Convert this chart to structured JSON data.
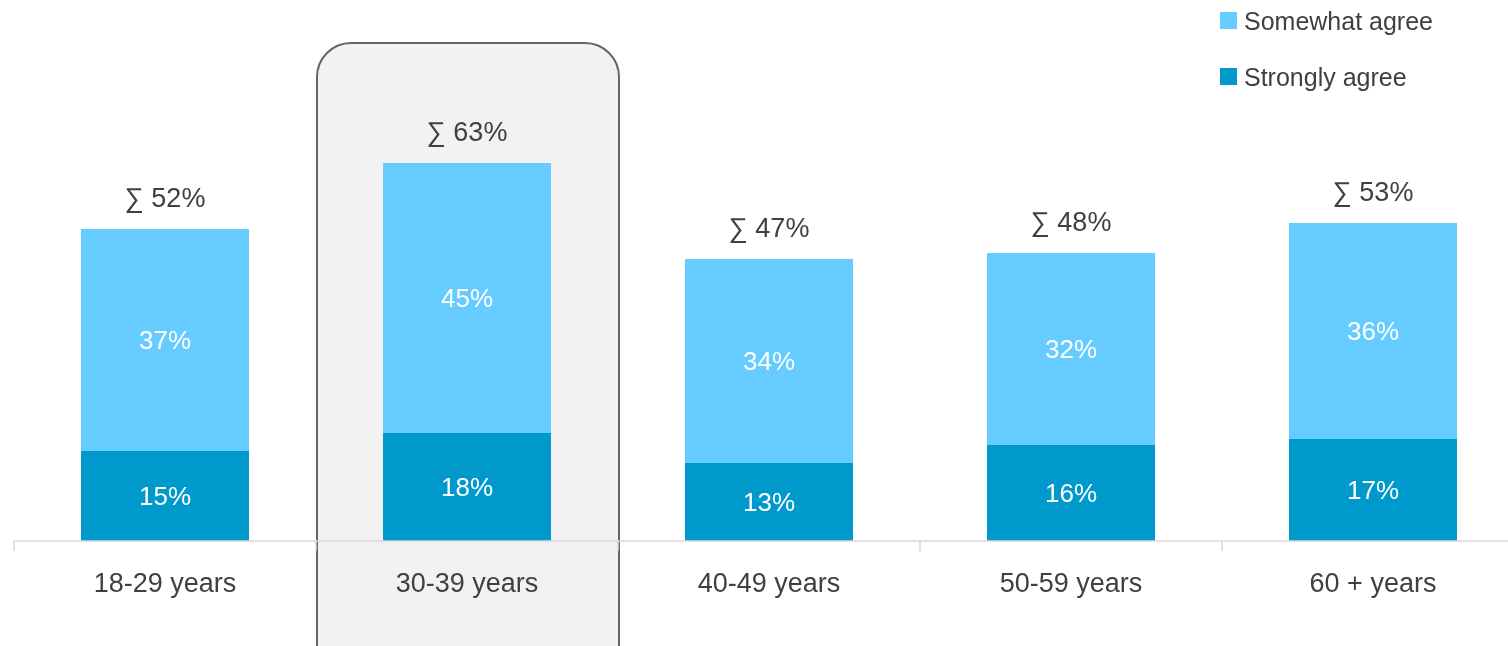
{
  "chart_data": {
    "type": "bar",
    "stacked": true,
    "categories": [
      "18-29 years",
      "30-39 years",
      "40-49 years",
      "50-59 years",
      "60 + years"
    ],
    "series": [
      {
        "name": "Strongly agree",
        "color": "#0099cc",
        "values": [
          15,
          18,
          13,
          16,
          17
        ],
        "value_labels": [
          "15%",
          "18%",
          "13%",
          "16%",
          "17%"
        ]
      },
      {
        "name": "Somewhat agree",
        "color": "#66ccff",
        "values": [
          37,
          45,
          34,
          32,
          36
        ],
        "value_labels": [
          "37%",
          "45%",
          "34%",
          "32%",
          "36%"
        ]
      }
    ],
    "totals": [
      "∑ 52%",
      "∑ 63%",
      "∑ 47%",
      "∑ 48%",
      "∑ 53%"
    ],
    "legend": "top right"
  }
}
